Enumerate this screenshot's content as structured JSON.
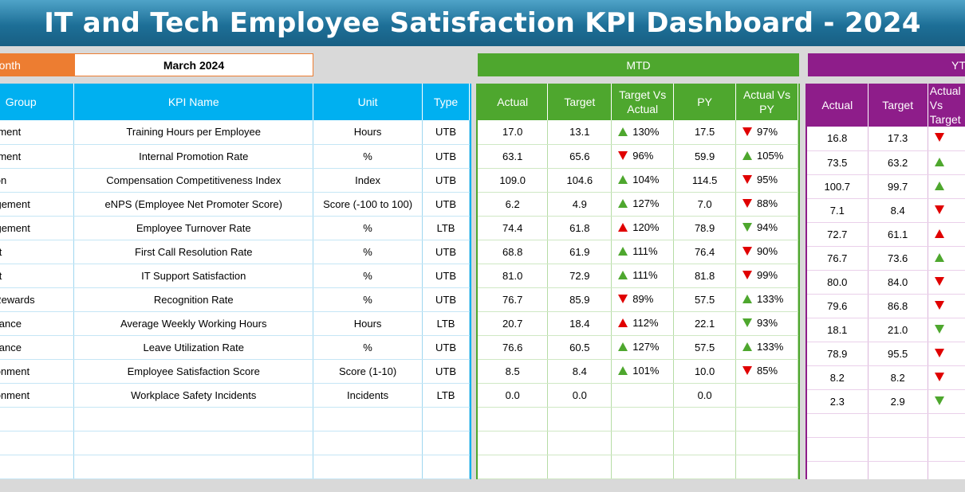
{
  "title": "IT and Tech Employee Satisfaction KPI Dashboard - 2024",
  "month": {
    "label": "Month",
    "value": "March 2024"
  },
  "mtd_label": "MTD",
  "ytd_label": "YTD",
  "colors": {
    "accent_blue": "#00b0f0",
    "mtd_green": "#4ea72e",
    "ytd_purple": "#8e1d8a",
    "month_orange": "#ed7d31",
    "up_green": "#4ea72e",
    "down_red": "#e00000"
  },
  "left_headers": [
    "Group",
    "KPI Name",
    "Unit",
    "Type"
  ],
  "mtd_headers": [
    "Actual",
    "Target",
    "Target Vs Actual",
    "PY",
    "Actual Vs PY"
  ],
  "ytd_headers": [
    "Actual",
    "Target",
    "Actual Vs Target"
  ],
  "rows": [
    {
      "group": "Development",
      "kpi": "Training Hours per Employee",
      "unit": "Hours",
      "type": "UTB",
      "mtd": {
        "actual": "17.0",
        "target": "13.1",
        "tva": "130%",
        "tva_dir": "up-green",
        "py": "17.5",
        "avp": "97%",
        "avp_dir": "down-red"
      },
      "ytd": {
        "actual": "16.8",
        "target": "17.3",
        "avt_dir": "down-red"
      }
    },
    {
      "group": "Development",
      "kpi": "Internal Promotion Rate",
      "unit": "%",
      "type": "UTB",
      "mtd": {
        "actual": "63.1",
        "target": "65.6",
        "tva": "96%",
        "tva_dir": "down-red",
        "py": "59.9",
        "avp": "105%",
        "avp_dir": "up-green"
      },
      "ytd": {
        "actual": "73.5",
        "target": "63.2",
        "avt_dir": "up-green"
      }
    },
    {
      "group": "Compensation",
      "kpi": "Compensation Competitiveness Index",
      "unit": "Index",
      "type": "UTB",
      "mtd": {
        "actual": "109.0",
        "target": "104.6",
        "tva": "104%",
        "tva_dir": "up-green",
        "py": "114.5",
        "avp": "95%",
        "avp_dir": "down-red"
      },
      "ytd": {
        "actual": "100.7",
        "target": "99.7",
        "avt_dir": "up-green"
      }
    },
    {
      "group": "Engagement",
      "kpi": "eNPS (Employee Net Promoter Score)",
      "unit": "Score (-100 to 100)",
      "type": "UTB",
      "mtd": {
        "actual": "6.2",
        "target": "4.9",
        "tva": "127%",
        "tva_dir": "up-green",
        "py": "7.0",
        "avp": "88%",
        "avp_dir": "down-red"
      },
      "ytd": {
        "actual": "7.1",
        "target": "8.4",
        "avt_dir": "down-red"
      }
    },
    {
      "group": "Engagement",
      "kpi": "Employee Turnover Rate",
      "unit": "%",
      "type": "LTB",
      "mtd": {
        "actual": "74.4",
        "target": "61.8",
        "tva": "120%",
        "tva_dir": "up-red",
        "py": "78.9",
        "avp": "94%",
        "avp_dir": "down-green"
      },
      "ytd": {
        "actual": "72.7",
        "target": "61.1",
        "avt_dir": "up-red"
      }
    },
    {
      "group": "Support",
      "kpi": "First Call Resolution Rate",
      "unit": "%",
      "type": "UTB",
      "mtd": {
        "actual": "68.8",
        "target": "61.9",
        "tva": "111%",
        "tva_dir": "up-green",
        "py": "76.4",
        "avp": "90%",
        "avp_dir": "down-red"
      },
      "ytd": {
        "actual": "76.7",
        "target": "73.6",
        "avt_dir": "up-green"
      }
    },
    {
      "group": "Support",
      "kpi": "IT Support Satisfaction",
      "unit": "%",
      "type": "UTB",
      "mtd": {
        "actual": "81.0",
        "target": "72.9",
        "tva": "111%",
        "tva_dir": "up-green",
        "py": "81.8",
        "avp": "99%",
        "avp_dir": "down-red"
      },
      "ytd": {
        "actual": "80.0",
        "target": "84.0",
        "avt_dir": "down-red"
      }
    },
    {
      "group": "Recognition & Rewards",
      "kpi": "Recognition Rate",
      "unit": "%",
      "type": "UTB",
      "mtd": {
        "actual": "76.7",
        "target": "85.9",
        "tva": "89%",
        "tva_dir": "down-red",
        "py": "57.5",
        "avp": "133%",
        "avp_dir": "up-green"
      },
      "ytd": {
        "actual": "79.6",
        "target": "86.8",
        "avt_dir": "down-red"
      }
    },
    {
      "group": "Work-Life Balance",
      "kpi": "Average Weekly Working Hours",
      "unit": "Hours",
      "type": "LTB",
      "mtd": {
        "actual": "20.7",
        "target": "18.4",
        "tva": "112%",
        "tva_dir": "up-red",
        "py": "22.1",
        "avp": "93%",
        "avp_dir": "down-green"
      },
      "ytd": {
        "actual": "18.1",
        "target": "21.0",
        "avt_dir": "down-green"
      }
    },
    {
      "group": "Work-Life Balance",
      "kpi": "Leave Utilization Rate",
      "unit": "%",
      "type": "UTB",
      "mtd": {
        "actual": "76.6",
        "target": "60.5",
        "tva": "127%",
        "tva_dir": "up-green",
        "py": "57.5",
        "avp": "133%",
        "avp_dir": "up-green"
      },
      "ytd": {
        "actual": "78.9",
        "target": "95.5",
        "avt_dir": "down-red"
      }
    },
    {
      "group": "Work Environment",
      "kpi": "Employee Satisfaction Score",
      "unit": "Score (1-10)",
      "type": "UTB",
      "mtd": {
        "actual": "8.5",
        "target": "8.4",
        "tva": "101%",
        "tva_dir": "up-green",
        "py": "10.0",
        "avp": "85%",
        "avp_dir": "down-red"
      },
      "ytd": {
        "actual": "8.2",
        "target": "8.2",
        "avt_dir": "down-red"
      }
    },
    {
      "group": "Work Environment",
      "kpi": "Workplace Safety Incidents",
      "unit": "Incidents",
      "type": "LTB",
      "mtd": {
        "actual": "0.0",
        "target": "0.0",
        "tva": "",
        "tva_dir": "",
        "py": "0.0",
        "avp": "",
        "avp_dir": ""
      },
      "ytd": {
        "actual": "2.3",
        "target": "2.9",
        "avt_dir": "down-green"
      }
    }
  ],
  "group_visible_text": [
    "lopment",
    "lopment",
    "ation",
    "gagement",
    "gagement",
    "port",
    "port",
    "& Rewards",
    "Balance",
    "Balance",
    "vironment",
    "vironment"
  ]
}
